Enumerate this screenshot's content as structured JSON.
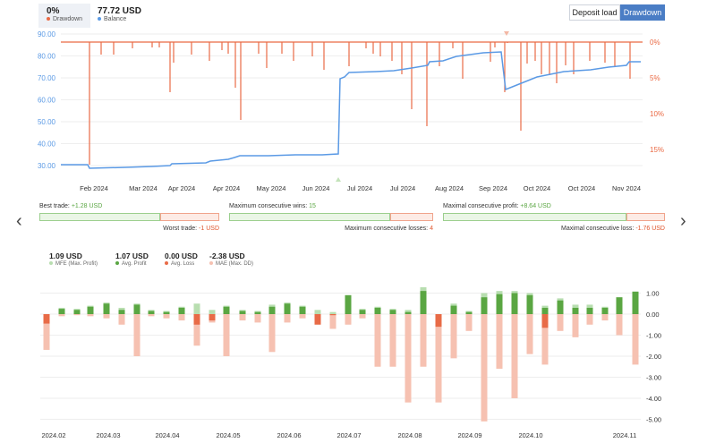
{
  "header": {
    "drawdown_value": "0%",
    "drawdown_label": "Drawdown",
    "balance_value": "77.72 USD",
    "balance_label": "Balance",
    "deposit_btn": "Deposit load",
    "drawdown_btn": "Drawdown"
  },
  "colors": {
    "balance": "#5b9ae5",
    "drawdown": "#ea6a45",
    "green": "#5aa642",
    "light_green": "#b8deb0",
    "red": "#e86b47",
    "light_red": "#f6c1b1"
  },
  "top_chart": {
    "y_left": [
      "90.00",
      "80.00",
      "70.00",
      "60.00",
      "50.00",
      "40.00",
      "30.00"
    ],
    "y_right": [
      "0%",
      "5%",
      "10%",
      "15%"
    ],
    "x_labels": [
      "Feb 2024",
      "Mar 2024",
      "Apr 2024",
      "Apr 2024",
      "May 2024",
      "Jun 2024",
      "Jul 2024",
      "Jul 2024",
      "Aug 2024",
      "Sep 2024",
      "Oct 2024",
      "Oct 2024",
      "Nov 2024"
    ]
  },
  "stats": {
    "best_label": "Best trade:",
    "best_value": "+1.28 USD",
    "worst_label": "Worst trade:",
    "worst_value": "-1 USD",
    "max_wins_label": "Maximum consecutive wins:",
    "max_wins_value": "15",
    "max_losses_label": "Maximum consecutive losses:",
    "max_losses_value": "4",
    "max_profit_label": "Maximal consecutive profit:",
    "max_profit_value": "+8.64 USD",
    "max_loss_label": "Maximal consecutive loss:",
    "max_loss_value": "-1.76 USD"
  },
  "summary": [
    {
      "value": "1.09 USD",
      "label": "MFE (Max. Profit)",
      "color": "#b8deb0"
    },
    {
      "value": "1.07 USD",
      "label": "Avg. Profit",
      "color": "#5aa642"
    },
    {
      "value": "0.00 USD",
      "label": "Avg. Loss",
      "color": "#e86b47"
    },
    {
      "value": "-2.38 USD",
      "label": "MAE (Max. DD)",
      "color": "#f6c1b1"
    }
  ],
  "bottom_chart": {
    "y_labels": [
      "1.00",
      "0.00",
      "-1.00",
      "-2.00",
      "-3.00",
      "-4.00",
      "-5.00"
    ],
    "x_labels": [
      "2024.02",
      "2024.03",
      "2024.04",
      "2024.05",
      "2024.06",
      "2024.07",
      "2024.08",
      "2024.09",
      "2024.10",
      "2024.11"
    ]
  },
  "chart_data": {
    "type": "bar",
    "mae_values": [
      -1.7,
      -0.1,
      -0.05,
      -0.1,
      -0.2,
      -0.5,
      -2.0,
      -0.1,
      -0.2,
      -0.3,
      -1.5,
      -0.4,
      -2.0,
      -0.3,
      -0.4,
      -1.8,
      -0.4,
      -0.2,
      -0.1,
      -0.7,
      -0.5,
      -0.2,
      -2.5,
      -2.5,
      -4.2,
      -2.5,
      -4.2,
      -2.1,
      -0.8,
      -5.1,
      -2.6,
      -4.0,
      -1.9,
      -2.4,
      -0.8,
      -1.1,
      -0.5,
      -0.3,
      -1.0,
      -2.4
    ],
    "profit_values": [
      0.0,
      0.25,
      0.2,
      0.35,
      0.5,
      0.2,
      0.45,
      0.15,
      0.1,
      0.3,
      0.0,
      0.0,
      0.35,
      0.15,
      0.1,
      0.35,
      0.5,
      0.35,
      0.0,
      0.0,
      0.9,
      0.2,
      0.3,
      0.2,
      0.1,
      1.1,
      0.0,
      0.4,
      0.1,
      0.8,
      0.95,
      1.0,
      0.9,
      0.3,
      0.65,
      0.3,
      0.3,
      0.3,
      0.8,
      1.07
    ],
    "loss_values": [
      -0.45,
      0,
      0,
      0,
      0,
      0,
      0,
      0,
      0,
      0,
      -0.5,
      -0.3,
      0,
      0,
      0,
      0,
      0,
      0,
      -0.5,
      -0.05,
      0,
      0,
      0,
      0,
      0,
      0,
      -0.6,
      0,
      0,
      0,
      0,
      0,
      0,
      -0.65,
      0,
      0,
      0,
      0,
      0,
      0
    ],
    "mfe_values": [
      0.0,
      0.3,
      0.25,
      0.4,
      0.55,
      0.3,
      0.5,
      0.2,
      0.15,
      0.35,
      0.5,
      0.2,
      0.4,
      0.2,
      0.15,
      0.45,
      0.55,
      0.4,
      0.2,
      0.1,
      0.9,
      0.25,
      0.35,
      0.25,
      0.2,
      1.28,
      0.0,
      0.5,
      0.15,
      1.0,
      1.1,
      1.1,
      1.0,
      0.4,
      0.75,
      0.45,
      0.45,
      0.35,
      0.8,
      1.07
    ],
    "ylim": [
      -5.5,
      1.2
    ]
  }
}
